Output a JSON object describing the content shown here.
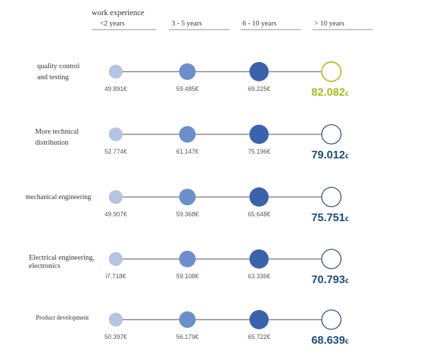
{
  "chart_data": {
    "type": "dot-matrix",
    "header_label": "work experience",
    "categories": [
      "<2 years",
      "3 - 5 years",
      "6 - 10 years",
      "> 10 years"
    ],
    "currency_symbol": "€",
    "rows": [
      {
        "name": "quality control and testing",
        "name_lines": [
          "quality control",
          "and testing"
        ],
        "value_labels": [
          "49.891",
          "59.485",
          "69.225",
          "82.082"
        ],
        "highlighted": true
      },
      {
        "name": "More technical distribution",
        "name_lines": [
          "More technical",
          "distribution"
        ],
        "value_labels": [
          "52.774",
          "61.147",
          "75.196",
          "79.012"
        ],
        "highlighted": false
      },
      {
        "name": "mechanical engineering",
        "name_lines": [
          "mechanical engineering"
        ],
        "value_labels": [
          "49.907",
          "59.368",
          "65.648",
          "75.751"
        ],
        "highlighted": false
      },
      {
        "name": "Electrical engineering, electronics",
        "name_lines": [
          "Electrical engineering,",
          "electronics"
        ],
        "value_labels": [
          "i7.718",
          "59.108",
          "63.336",
          "70.793"
        ],
        "highlighted": false
      },
      {
        "name": "Product development",
        "name_lines": [
          "Product development"
        ],
        "value_labels": [
          "50.397",
          "56.179",
          "65.722",
          "68.639"
        ],
        "highlighted": false
      }
    ],
    "colors": {
      "level_1": "#b4c4e2",
      "level_2": "#6a8fcb",
      "level_3": "#3a63ae",
      "final_ring": "#2a4a78",
      "highlight_ring": "#b7c62b",
      "highlight_text": "#a6bf1c",
      "final_text": "#1a4d82",
      "value_text": "#555555",
      "label_text": "#333333",
      "line": "#444444"
    }
  }
}
